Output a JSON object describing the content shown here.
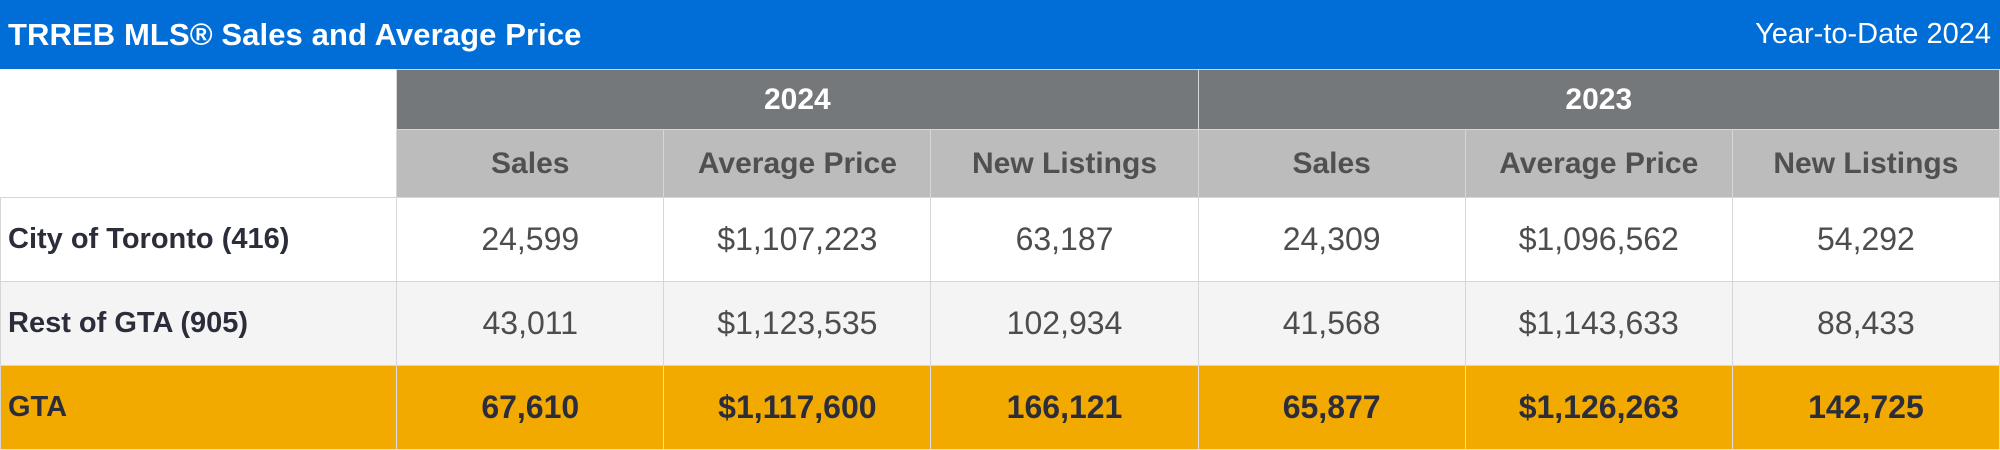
{
  "header": {
    "title": "TRREB MLS® Sales and Average Price",
    "period": "Year-to-Date 2024"
  },
  "colors": {
    "title_bar": "#006ed6",
    "year_header": "#75787b",
    "metric_header": "#bbbcbb",
    "alt_row": "#f4f4f4",
    "total_row": "#f2a900"
  },
  "table": {
    "years": [
      "2024",
      "2023"
    ],
    "metrics": [
      "Sales",
      "Average Price",
      "New Listings",
      "Sales",
      "Average Price",
      "New Listings"
    ],
    "rows": [
      {
        "label": "City of Toronto (416)",
        "values": [
          "24,599",
          "$1,107,223",
          "63,187",
          "24,309",
          "$1,096,562",
          "54,292"
        ]
      },
      {
        "label": "Rest of GTA (905)",
        "values": [
          "43,011",
          "$1,123,535",
          "102,934",
          "41,568",
          "$1,143,633",
          "88,433"
        ]
      },
      {
        "label": "GTA",
        "values": [
          "67,610",
          "$1,117,600",
          "166,121",
          "65,877",
          "$1,126,263",
          "142,725"
        ]
      }
    ]
  }
}
